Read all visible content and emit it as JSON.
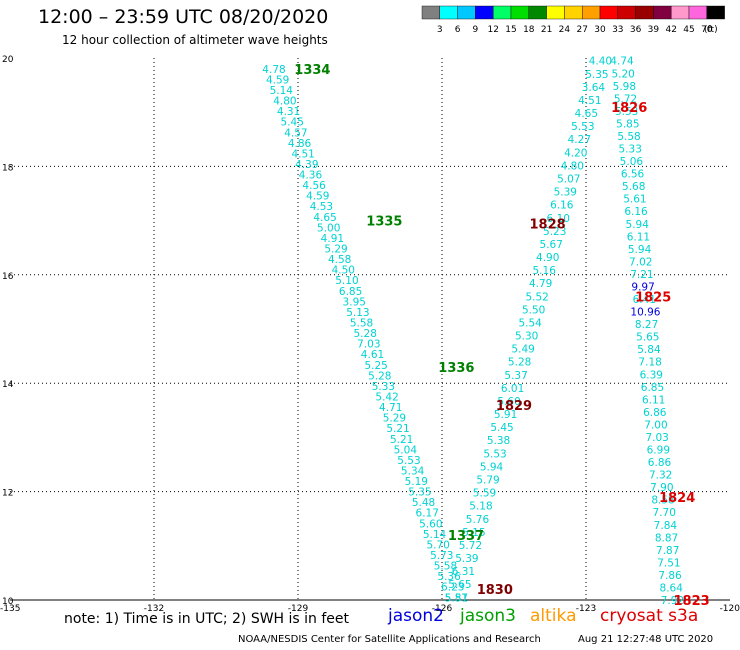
{
  "title": "12:00 – 23:59 UTC 08/20/2020",
  "subtitle": "12 hour collection of altimeter wave heights",
  "note": "note:  1) Time is in UTC; 2) SWH is in feet",
  "credit": "NOAA/NESDIS Center for Satellite Applications and Research",
  "timestamp": "Aug 21 12:27:48 UTC 2020",
  "satellites": [
    {
      "name": "jason2",
      "color": "#0000dd"
    },
    {
      "name": "jason3",
      "color": "#00a000"
    },
    {
      "name": "altika",
      "color": "#ff9900"
    },
    {
      "name": "cryosat s3a",
      "color": "#dd0000"
    }
  ],
  "colorbar": {
    "labels": [
      "3",
      "6",
      "9",
      "12",
      "15",
      "18",
      "21",
      "24",
      "27",
      "30",
      "33",
      "36",
      "39",
      "42",
      "45",
      "70",
      "(ft)"
    ],
    "colors": [
      "#808080",
      "#00ffff",
      "#00c8ff",
      "#0000ff",
      "#00ff66",
      "#00dd00",
      "#008800",
      "#ffff00",
      "#ffd200",
      "#ffa000",
      "#ff0000",
      "#cc0000",
      "#990000",
      "#800040",
      "#ff99cc",
      "#ff66dd",
      "#000000"
    ]
  },
  "chart_data": {
    "type": "scatter",
    "xlim": [
      -135,
      -120
    ],
    "ylim": [
      10,
      20
    ],
    "xticks": [
      "-135",
      "-132",
      "-129",
      "-126",
      "-123",
      "-120"
    ],
    "yticks": [
      "20",
      "18",
      "16",
      "14",
      "12",
      "10"
    ],
    "grid": true,
    "passes": [
      {
        "id": "1334",
        "satellite": "jason3",
        "label": "1334",
        "label_color": "#008000",
        "label_x": -128.7,
        "label_y": 19.8,
        "start": [
          -129.5,
          19.8
        ],
        "end": [
          -125.7,
          10.05
        ],
        "text_color": "#00d2d2",
        "values": [
          "4.78",
          "4.59",
          "5.14",
          "4.80",
          "4.31",
          "5.45",
          "4.57",
          "4.86",
          "4.51",
          "4.39",
          "4.36",
          "4.56",
          "4.59",
          "4.53",
          "4.65",
          "5.00",
          "4.91",
          "5.29",
          "4.58",
          "4.50",
          "5.10",
          "6.85",
          "3.95",
          "5.13",
          "5.58",
          "5.28",
          "7.03",
          "4.61",
          "5.25",
          "5.28",
          "5.33",
          "5.42",
          "4.71",
          "5.29",
          "5.21",
          "5.21",
          "5.04",
          "5.53",
          "5.34",
          "5.19",
          "5.35",
          "5.48",
          "6.17",
          "5.60",
          "5.14",
          "5.70",
          "5.73",
          "5.58",
          "5.36",
          "6.23",
          "5.87"
        ]
      },
      {
        "id": "1335",
        "satellite": "jason3",
        "label": "1335",
        "label_color": "#008000",
        "label_x": -127.2,
        "label_y": 17.0
      },
      {
        "id": "1336",
        "satellite": "jason3",
        "label": "1336",
        "label_color": "#008000",
        "label_x": -125.7,
        "label_y": 14.3
      },
      {
        "id": "1337",
        "satellite": "jason3",
        "label": "1337",
        "label_color": "#008000",
        "label_x": -125.5,
        "label_y": 11.2,
        "start": [
          -122.7,
          19.95
        ],
        "end": [
          -125.7,
          10.05
        ],
        "text_color": "#00d2d2",
        "values": [
          "4.40",
          "5.35",
          "3.64",
          "4.51",
          "4.65",
          "5.53",
          "4.27",
          "4.20",
          "4.80",
          "5.07",
          "5.39",
          "6.16",
          "6.10",
          "5.23",
          "5.67",
          "4.90",
          "5.16",
          "4.79",
          "5.52",
          "5.50",
          "5.54",
          "5.30",
          "5.49",
          "5.28",
          "5.37",
          "6.01",
          "5.60",
          "5.91",
          "5.45",
          "5.38",
          "5.53",
          "5.94",
          "5.79",
          "5.59",
          "5.18",
          "5.76",
          "5.15",
          "5.72",
          "5.39",
          "6.31",
          "5.65",
          "5.51"
        ]
      },
      {
        "id": "1828",
        "satellite": "cryosat s3a",
        "label": "1828",
        "label_color": "#800000",
        "label_x": -123.8,
        "label_y": 16.95
      },
      {
        "id": "1829",
        "satellite": "cryosat s3a",
        "label": "1829",
        "label_color": "#800000",
        "label_x": -124.5,
        "label_y": 13.6
      },
      {
        "id": "1830",
        "satellite": "cryosat s3a",
        "label": "1830",
        "label_color": "#800000",
        "label_x": -124.9,
        "label_y": 10.2
      },
      {
        "id": "1826",
        "satellite": "cryosat s3a",
        "label": "1826",
        "label_color": "#dd0000",
        "label_x": -122.1,
        "label_y": 19.1,
        "start": [
          -122.25,
          19.95
        ],
        "end": [
          -121.2,
          10.0
        ],
        "text_color": "#00d2d2",
        "values": [
          "4.74",
          "5.20",
          "5.98",
          "5.72",
          "5.53",
          "5.85",
          "5.58",
          "5.33",
          "5.06",
          "6.56",
          "5.68",
          "5.61",
          "6.16",
          "5.94",
          "6.11",
          "5.94",
          "7.02",
          "7.21",
          "9.97",
          "6.41",
          "10.96",
          "8.27",
          "5.65",
          "5.84",
          "7.18",
          "6.39",
          "6.85",
          "6.11",
          "6.86",
          "7.00",
          "7.03",
          "6.99",
          "6.86",
          "7.32",
          "7.90",
          "8.58",
          "7.70",
          "7.84",
          "8.87",
          "7.87",
          "7.51",
          "7.86",
          "8.64",
          "7.92"
        ]
      },
      {
        "id": "1825",
        "satellite": "cryosat s3a",
        "label": "1825",
        "label_color": "#dd0000",
        "label_x": -121.6,
        "label_y": 15.6
      },
      {
        "id": "1824",
        "satellite": "cryosat s3a",
        "label": "1824",
        "label_color": "#dd0000",
        "label_x": -121.1,
        "label_y": 11.9
      },
      {
        "id": "1823",
        "satellite": "cryosat s3a",
        "label": "1823",
        "label_color": "#dd0000",
        "label_x": -120.8,
        "label_y": 10.0
      }
    ]
  }
}
